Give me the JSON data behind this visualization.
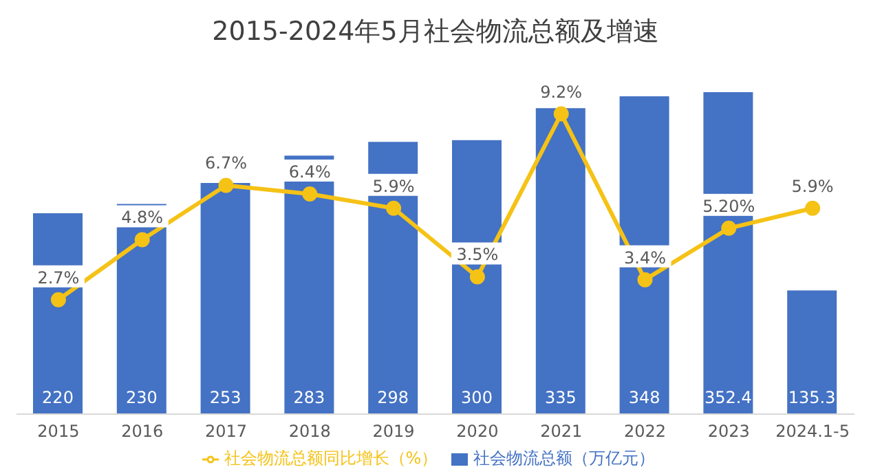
{
  "chart_data": {
    "type": "bar",
    "title": "2015-2024年5月社会物流总额及增速",
    "categories": [
      "2015",
      "2016",
      "2017",
      "2018",
      "2019",
      "2020",
      "2021",
      "2022",
      "2023",
      "2024.1-5"
    ],
    "series": [
      {
        "name": "社会物流总额（万亿元）",
        "color": "#4472c4",
        "values": [
          220,
          230,
          253,
          283,
          298,
          300,
          335,
          348,
          352.4,
          135.3
        ],
        "value_labels": [
          "220",
          "230",
          "253",
          "283",
          "298",
          "300",
          "335",
          "348",
          "352.4",
          "135.3"
        ]
      },
      {
        "name": "社会物流总额同比增长（%）",
        "type": "line",
        "axis": "y2",
        "color": "#f5c216",
        "values": [
          2.7,
          4.8,
          6.7,
          6.4,
          5.9,
          3.5,
          9.2,
          3.4,
          5.2,
          5.9
        ],
        "value_labels": [
          "2.7%",
          "4.8%",
          "6.7%",
          "6.4%",
          "5.9%",
          "3.5%",
          "9.2%",
          "3.4%",
          "5.20%",
          "5.9%"
        ]
      }
    ],
    "legend": "bottom",
    "marker": "circle",
    "tick_labels": "x"
  }
}
